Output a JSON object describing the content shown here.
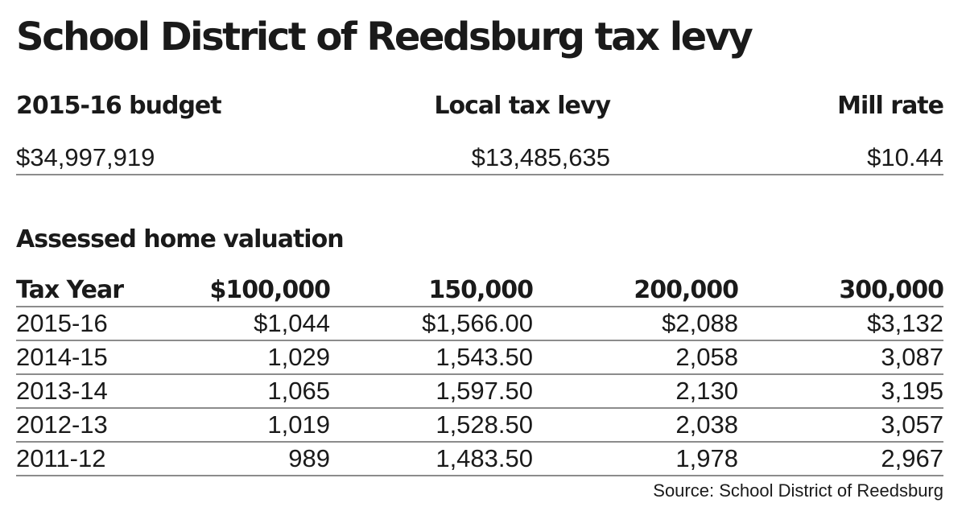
{
  "title": "School District of Reedsburg tax levy",
  "summary": {
    "headers": [
      "2015-16 budget",
      "Local tax levy",
      "Mill rate"
    ],
    "values": [
      "$34,997,919",
      "$13,485,635",
      "$10.44"
    ]
  },
  "section_label": "Assessed home valuation",
  "source": "Source: School District of Reedsburg",
  "chart_data": {
    "type": "table",
    "title": "School District of Reedsburg tax levy",
    "columns": [
      "Tax Year",
      "$100,000",
      "150,000",
      "200,000",
      "300,000"
    ],
    "rows": [
      [
        "2015-16",
        "$1,044",
        "$1,566.00",
        "$2,088",
        "$3,132"
      ],
      [
        "2014-15",
        "1,029",
        "1,543.50",
        "2,058",
        "3,087"
      ],
      [
        "2013-14",
        "1,065",
        "1,597.50",
        "2,130",
        "3,195"
      ],
      [
        "2012-13",
        "1,019",
        "1,528.50",
        "2,038",
        "3,057"
      ],
      [
        "2011-12",
        "989",
        "1,483.50",
        "1,978",
        "2,967"
      ]
    ]
  }
}
